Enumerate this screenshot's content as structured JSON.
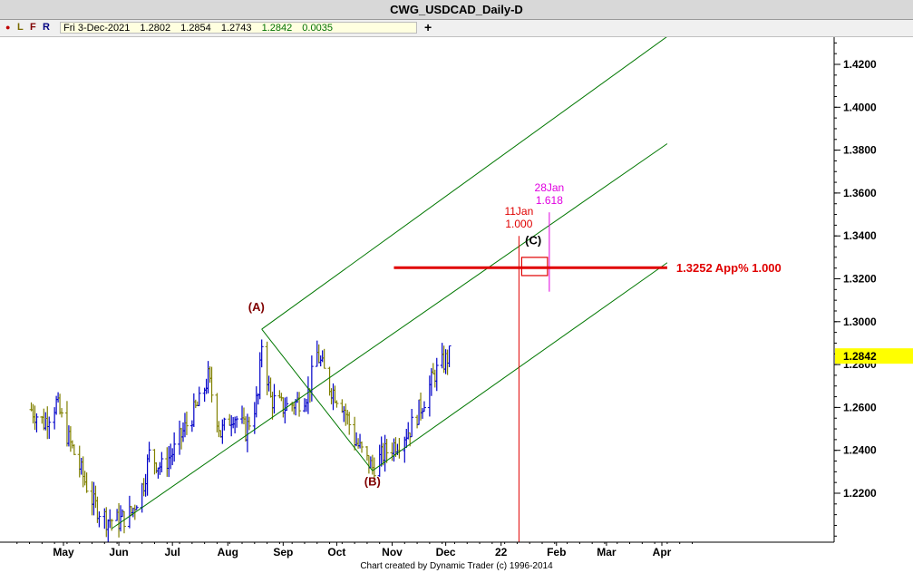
{
  "window": {
    "title": "CWG_USDCAD_Daily-D"
  },
  "toolbar": {
    "buttons": [
      "L",
      "F",
      "R"
    ],
    "ohlc": {
      "date": "Fri 3-Dec-2021",
      "open": "1.2802",
      "high": "1.2854",
      "low": "1.2743",
      "close": "1.2842",
      "change": "0.0035"
    },
    "add_symbol": "+"
  },
  "footer": {
    "credit": "Chart created by Dynamic Trader  (c) 1996-2014"
  },
  "chart_data": {
    "type": "bar",
    "title": "CWG_USDCAD_Daily-D",
    "instrument": "USDCAD",
    "timeframe": "Daily",
    "y_axis": {
      "position": "right",
      "ylim": [
        1.195,
        1.432
      ],
      "ticks": [
        "1.2200",
        "1.2400",
        "1.2600",
        "1.2800",
        "1.3000",
        "1.3200",
        "1.3400",
        "1.3600",
        "1.3800",
        "1.4000",
        "1.4200"
      ]
    },
    "x_axis": {
      "labels": [
        "May",
        "Jun",
        "Jul",
        "Aug",
        "Sep",
        "Oct",
        "Nov",
        "Dec",
        "22",
        "Feb",
        "Mar",
        "Apr"
      ],
      "label_dates": [
        "2021-05-01",
        "2021-06-01",
        "2021-07-01",
        "2021-08-01",
        "2021-09-01",
        "2021-10-01",
        "2021-11-01",
        "2021-12-01",
        "2022-01-01",
        "2022-02-01",
        "2022-03-01",
        "2022-04-01"
      ]
    },
    "last_price": {
      "label": "1.2842",
      "value": 1.2842,
      "color": "#ffff00"
    },
    "ohlc_anchor_points": [
      [
        "2021-04-13",
        1.259
      ],
      [
        "2021-04-20",
        1.253
      ],
      [
        "2021-04-27",
        1.262
      ],
      [
        "2021-05-04",
        1.245
      ],
      [
        "2021-05-11",
        1.23
      ],
      [
        "2021-05-18",
        1.215
      ],
      [
        "2021-05-25",
        1.208
      ],
      [
        "2021-06-01",
        1.207
      ],
      [
        "2021-06-08",
        1.211
      ],
      [
        "2021-06-15",
        1.225
      ],
      [
        "2021-06-18",
        1.238
      ],
      [
        "2021-06-25",
        1.232
      ],
      [
        "2021-07-02",
        1.24
      ],
      [
        "2021-07-09",
        1.252
      ],
      [
        "2021-07-16",
        1.262
      ],
      [
        "2021-07-21",
        1.274
      ],
      [
        "2021-07-28",
        1.248
      ],
      [
        "2021-08-04",
        1.257
      ],
      [
        "2021-08-11",
        1.249
      ],
      [
        "2021-08-18",
        1.265
      ],
      [
        "2021-08-20",
        1.29
      ],
      [
        "2021-08-25",
        1.264
      ],
      [
        "2021-09-01",
        1.26
      ],
      [
        "2021-09-08",
        1.262
      ],
      [
        "2021-09-15",
        1.267
      ],
      [
        "2021-09-20",
        1.285
      ],
      [
        "2021-09-27",
        1.27
      ],
      [
        "2021-10-04",
        1.262
      ],
      [
        "2021-10-11",
        1.245
      ],
      [
        "2021-10-18",
        1.235
      ],
      [
        "2021-10-21",
        1.232
      ],
      [
        "2021-10-28",
        1.239
      ],
      [
        "2021-11-04",
        1.244
      ],
      [
        "2021-11-11",
        1.25
      ],
      [
        "2021-11-18",
        1.262
      ],
      [
        "2021-11-25",
        1.276
      ],
      [
        "2021-12-03",
        1.2842
      ]
    ],
    "up_bar_color": "#0000c8",
    "down_bar_color": "#808000",
    "channel": {
      "color": "#007700",
      "lines": [
        {
          "name": "median",
          "points": [
            [
              "2021-05-28",
              1.2035
            ],
            [
              "2022-04-04",
              1.383
            ]
          ]
        },
        {
          "name": "upper",
          "points": [
            [
              "2021-08-20",
              1.2965
            ],
            [
              "2022-04-04",
              1.433
            ]
          ]
        },
        {
          "name": "lower",
          "points": [
            [
              "2021-10-21",
              1.2305
            ],
            [
              "2022-04-04",
              1.3275
            ]
          ]
        },
        {
          "name": "handle",
          "points": [
            [
              "2021-08-20",
              1.2965
            ],
            [
              "2021-10-21",
              1.2305
            ]
          ]
        }
      ]
    },
    "wave_labels": [
      {
        "label": "(A)",
        "date": "2021-08-17",
        "price": 1.305,
        "color": "#800000"
      },
      {
        "label": "(B)",
        "date": "2021-10-21",
        "price": 1.2235,
        "color": "#800000"
      },
      {
        "label": "(C)",
        "date": "2022-01-19",
        "price": 1.336,
        "color": "#000000"
      }
    ],
    "target": {
      "label": "1.3252 App% 1.000",
      "price": 1.3252,
      "color": "#e00000",
      "from_date": "2021-11-02",
      "to_date": "2022-04-04"
    },
    "time_targets": [
      {
        "line1": "11Jan",
        "line2": "1.000",
        "date": "2022-01-11",
        "color": "#e00000"
      },
      {
        "line1": "28Jan",
        "line2": "1.618",
        "date": "2022-01-28",
        "color": "#e000e0"
      }
    ],
    "target_box": {
      "from_date": "2022-01-11",
      "to_date": "2022-01-28",
      "price_low": 1.3215,
      "price_high": 1.33,
      "color": "#e00000"
    }
  }
}
